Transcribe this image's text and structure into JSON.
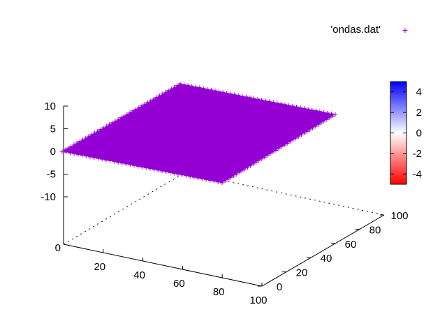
{
  "chart_data": {
    "type": "scatter",
    "subtype": "3d-surface-points",
    "legend": {
      "label": "'ondas.dat'",
      "symbol": "+",
      "color": "#9400d3",
      "placement": "top-right"
    },
    "x_axis": {
      "range": [
        0,
        100
      ],
      "ticks": [
        "20",
        "40",
        "60",
        "80",
        "100"
      ]
    },
    "y_axis": {
      "range": [
        0,
        100
      ],
      "ticks": [
        "0",
        "20",
        "40",
        "60",
        "80",
        "100"
      ]
    },
    "z_axis": {
      "range": [
        -10,
        10
      ],
      "ticks": [
        "10",
        "5",
        "0",
        "-5",
        "-10"
      ],
      "base_label": "0"
    },
    "series": [
      {
        "x_range": [
          0,
          100
        ],
        "y_range": [
          0,
          100
        ],
        "z_approx": 0,
        "color": "#9400d3",
        "marker": "+"
      }
    ],
    "colorbox": {
      "range": [
        -5,
        5
      ],
      "ticks": [
        "4",
        "2",
        "0",
        "-2",
        "-4"
      ],
      "colors": {
        "low": "#ff0000",
        "mid": "#ffffff",
        "high": "#0000ff"
      }
    },
    "grid": false
  }
}
